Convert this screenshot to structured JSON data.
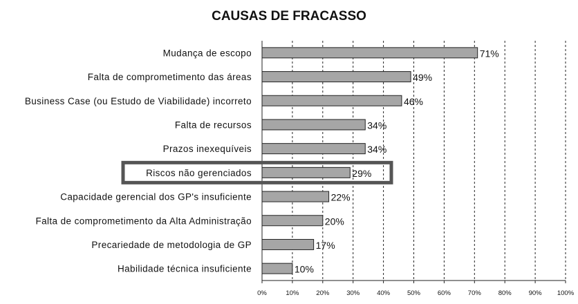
{
  "chart_data": {
    "type": "bar",
    "orientation": "horizontal",
    "title": "CAUSAS DE FRACASSO",
    "categories": [
      "Mudança de escopo",
      "Falta de comprometimento das áreas",
      "Business Case (ou Estudo de Viabilidade) incorreto",
      "Falta de recursos",
      "Prazos inexequíveis",
      "Riscos não gerenciados",
      "Capacidade gerencial dos GP's insuficiente",
      "Falta de comprometimento da Alta Administração",
      "Precariedade de metodologia de GP",
      "Habilidade técnica insuficiente"
    ],
    "values": [
      71,
      49,
      46,
      34,
      34,
      29,
      22,
      20,
      17,
      10
    ],
    "value_labels": [
      "71%",
      "49%",
      "46%",
      "34%",
      "34%",
      "29%",
      "22%",
      "20%",
      "17%",
      "10%"
    ],
    "xlim": [
      0,
      100
    ],
    "x_ticks": [
      "0%",
      "10%",
      "20%",
      "30%",
      "40%",
      "50%",
      "60%",
      "70%",
      "80%",
      "90%",
      "100%"
    ],
    "grid": "vertical dashed",
    "highlighted_category": "Riscos não gerenciados",
    "bar_color": "#a6a6a6",
    "highlight_color": "#555555"
  }
}
